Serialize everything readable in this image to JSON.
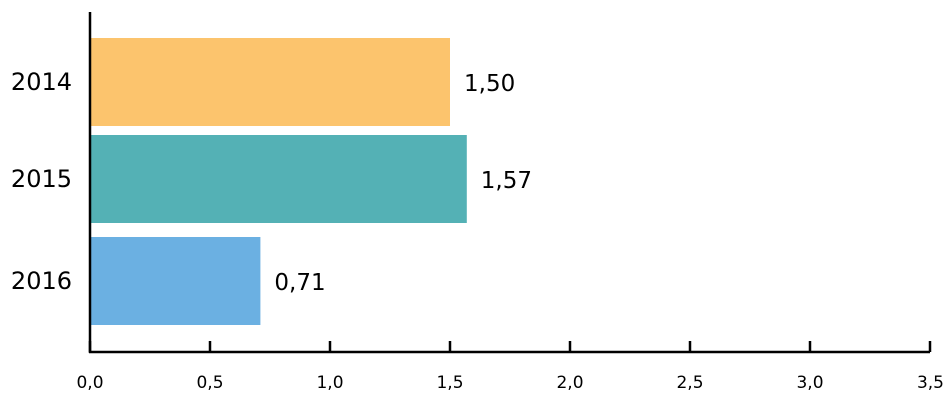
{
  "chart_data": {
    "type": "bar",
    "orientation": "horizontal",
    "categories": [
      "2014",
      "2015",
      "2016"
    ],
    "values": [
      1.5,
      1.57,
      0.71
    ],
    "data_labels": [
      "1,50",
      "1,57",
      "0,71"
    ],
    "colors": [
      "#fcc46d",
      "#54b1b5",
      "#6bb0e2"
    ],
    "xlim": [
      0,
      3.5
    ],
    "xticks": [
      0,
      0.5,
      1.0,
      1.5,
      2.0,
      2.5,
      3.0,
      3.5
    ],
    "xtick_labels": [
      "0,0",
      "0,5",
      "1,0",
      "1,5",
      "2,0",
      "2,5",
      "3,0",
      "3,5"
    ],
    "title": "",
    "xlabel": "",
    "ylabel": "",
    "grid": false,
    "legend": "none"
  }
}
